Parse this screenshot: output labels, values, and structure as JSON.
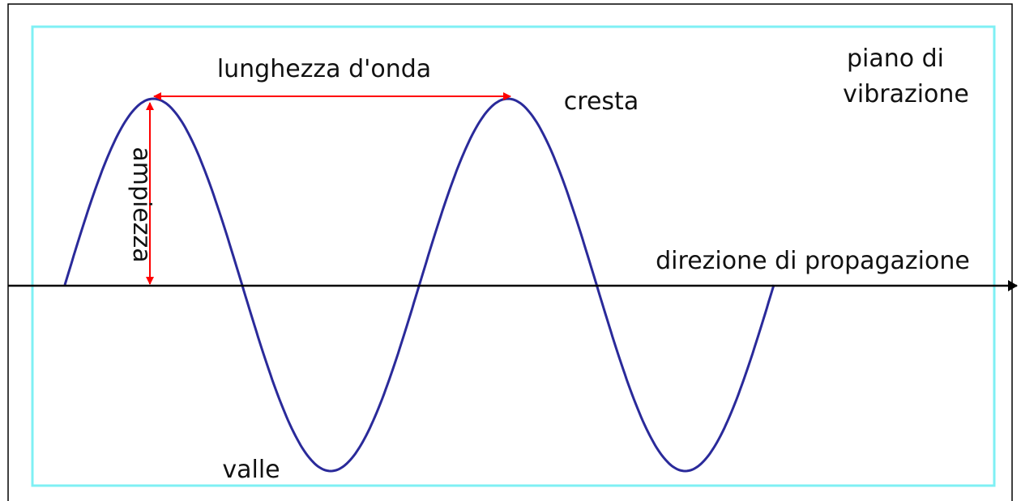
{
  "labels": {
    "wavelength": "lunghezza d'onda",
    "crest": "cresta",
    "plane": [
      "piano di",
      "vibrazione"
    ],
    "amplitude": "ampiezza",
    "direction": "direzione di propagazione",
    "trough": "valle"
  }
}
